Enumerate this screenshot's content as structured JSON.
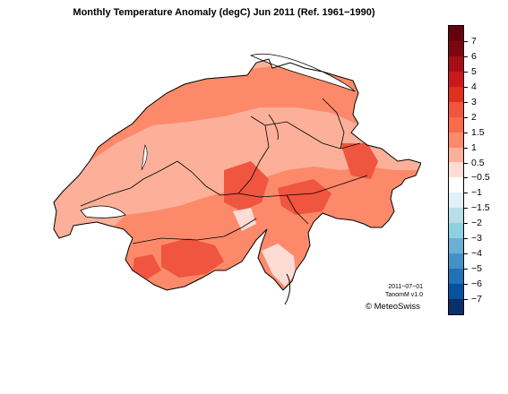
{
  "title": "Monthly Temperature Anomaly (degC) Jun 2011  (Ref. 1961−1990)",
  "legend": {
    "labels": [
      "7",
      "6",
      "5",
      "4",
      "3",
      "2",
      "1.5",
      "1",
      "0.5",
      "−0.5",
      "−1",
      "−1.5",
      "−2",
      "−3",
      "−4",
      "−5",
      "−6",
      "−7"
    ],
    "colors": [
      "#67000d",
      "#7d0710",
      "#a50f15",
      "#cb181d",
      "#e0301e",
      "#ef553f",
      "#fb6a4a",
      "#fc8a6a",
      "#fcb09a",
      "#fddcd5",
      "#ffffff",
      "#dff0f6",
      "#b7dfe8",
      "#8ecfe0",
      "#6baed6",
      "#4292c6",
      "#2171b5",
      "#08519c",
      "#08306b"
    ]
  },
  "stamp": {
    "date": "2011−07−01",
    "version": "TanomM v1.0"
  },
  "copyright": "© MeteoSwiss",
  "map": {
    "country": "Switzerland",
    "dominant_class": "1 to 1.5",
    "fill_colors": {
      "lowland": "#fcb09a",
      "alpine": "#fc8a6a",
      "high": "#ef553f",
      "lake": "#ffffff"
    }
  }
}
